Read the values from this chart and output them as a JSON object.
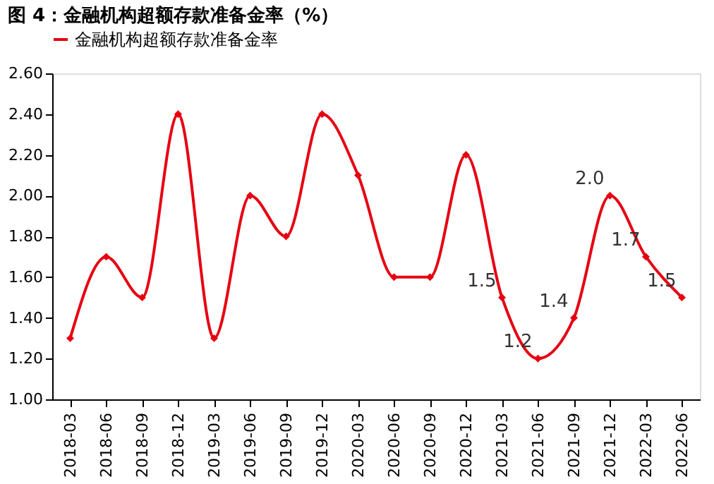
{
  "chart_data": {
    "type": "line",
    "title": "图 4：金融机构超额存款准备金率（%）",
    "categories": [
      "2018-03",
      "2018-06",
      "2018-09",
      "2018-12",
      "2019-03",
      "2019-06",
      "2019-09",
      "2019-12",
      "2020-03",
      "2020-06",
      "2020-09",
      "2020-12",
      "2021-03",
      "2021-06",
      "2021-09",
      "2021-12",
      "2022-03",
      "2022-06"
    ],
    "series": [
      {
        "name": "金融机构超额存款准备金率",
        "color": "#e60012",
        "values": [
          1.3,
          1.7,
          1.5,
          2.4,
          1.3,
          2.0,
          1.8,
          2.4,
          2.1,
          1.6,
          1.6,
          2.2,
          1.5,
          1.2,
          1.4,
          2.0,
          1.7,
          1.5
        ],
        "value_labels": [
          null,
          null,
          null,
          null,
          null,
          null,
          null,
          null,
          null,
          null,
          null,
          null,
          "1.5",
          "1.2",
          "1.4",
          "2.0",
          "1.7",
          "1.5"
        ]
      }
    ],
    "ylim": [
      1.0,
      2.6
    ],
    "yticks": [
      {
        "value": 1.0,
        "label": "1.00"
      },
      {
        "value": 1.2,
        "label": "1.20"
      },
      {
        "value": 1.4,
        "label": "1.40"
      },
      {
        "value": 1.6,
        "label": "1.60"
      },
      {
        "value": 1.8,
        "label": "1.80"
      },
      {
        "value": 2.0,
        "label": "2.00"
      },
      {
        "value": 2.2,
        "label": "2.20"
      },
      {
        "value": 2.4,
        "label": "2.40"
      },
      {
        "value": 2.6,
        "label": "2.60"
      }
    ],
    "grid": false,
    "legend": "top",
    "marker": "diamond",
    "line_style": "solid"
  }
}
